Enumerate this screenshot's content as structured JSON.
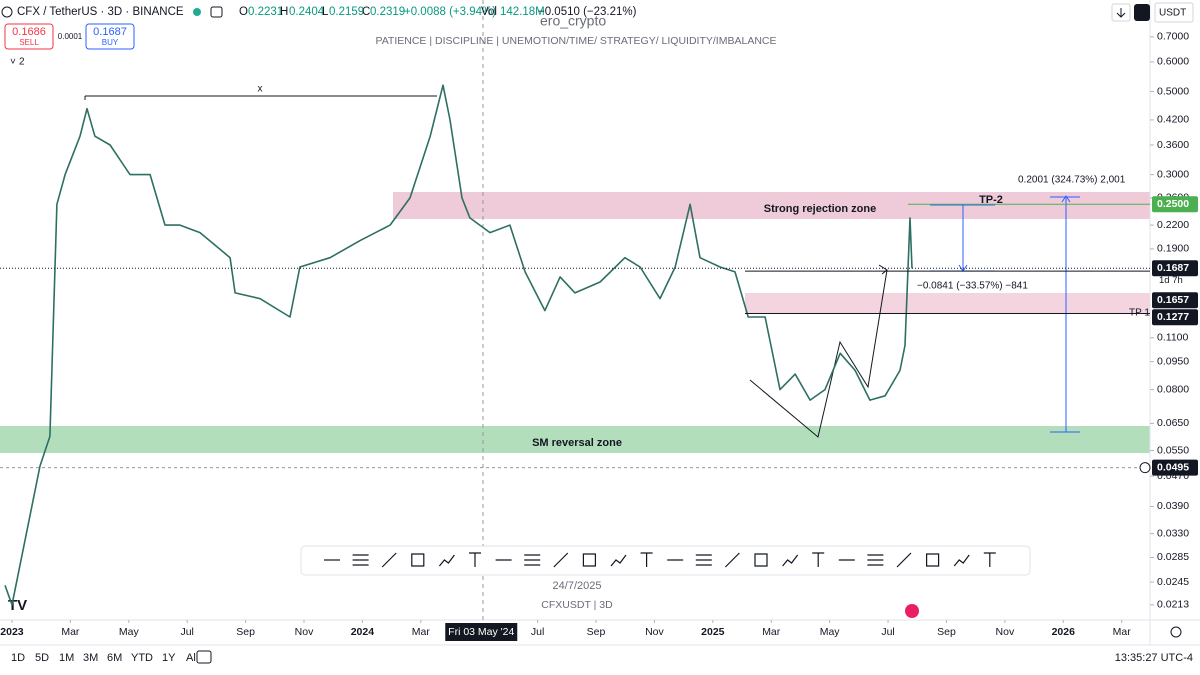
{
  "header": {
    "symbol": "CFX / TetherUS · 3D · BINANCE",
    "open_label": "O",
    "open": "0.2231",
    "high_label": "H",
    "high": "0.2404",
    "low_label": "L",
    "low": "0.2159",
    "close_label": "C",
    "close": "0.2319",
    "change": "+0.0088 (+3.94%)",
    "volume_label": "Vol",
    "volume": "142.18M",
    "period_change": "−0.0510 (−23.21%)",
    "sell_price": "0.1686",
    "sell": "SELL",
    "spread": "0.0001",
    "buy_price": "0.1687",
    "buy": "BUY",
    "indicators": "2",
    "currency": "USDT"
  },
  "author": "ero_crypto",
  "motto": "PATIENCE  |  DISCIPLINE  |  UNEMOTION/TIME/ STRATEGY/ LIQUIDITY/IMBALANCE",
  "chart_data": {
    "type": "line",
    "color": "#2e6f63",
    "log_scale": true,
    "grid": false,
    "x": [
      -0.24,
      0,
      0.96,
      1.3,
      1.54,
      1.82,
      2.33,
      2.57,
      2.84,
      3.36,
      4.04,
      4.73,
      5.24,
      5.75,
      6.44,
      7.47,
      7.64,
      8.49,
      9.52,
      9.86,
      10.89,
      11.92,
      12.95,
      13.63,
      14.32,
      14.76,
      15.0,
      15.41,
      15.68,
      16.37,
      17.05,
      17.57,
      18.25,
      18.77,
      19.28,
      20.14,
      20.99,
      21.51,
      22.19,
      22.71,
      23.22,
      23.56,
      24.25,
      24.76,
      25.21,
      25.79,
      26.3,
      26.82,
      27.33,
      27.84,
      28.36,
      28.87,
      29.38,
      29.9,
      30.41,
      30.58,
      30.75,
      30.82
    ],
    "values": [
      0.024,
      0.0213,
      0.05,
      0.06,
      0.25,
      0.3,
      0.38,
      0.45,
      0.38,
      0.36,
      0.3,
      0.3,
      0.22,
      0.22,
      0.21,
      0.18,
      0.145,
      0.14,
      0.125,
      0.17,
      0.18,
      0.2,
      0.22,
      0.26,
      0.38,
      0.52,
      0.42,
      0.26,
      0.23,
      0.21,
      0.22,
      0.165,
      0.13,
      0.16,
      0.145,
      0.155,
      0.18,
      0.17,
      0.14,
      0.17,
      0.25,
      0.18,
      0.17,
      0.165,
      0.125,
      0.125,
      0.08,
      0.088,
      0.075,
      0.08,
      0.1,
      0.09,
      0.075,
      0.077,
      0.09,
      0.105,
      0.23,
      0.1687
    ],
    "xlim": [
      -0.41,
      38.97
    ],
    "xticks": [
      {
        "value": 0,
        "label": "2023"
      },
      {
        "value": 2,
        "label": "Mar"
      },
      {
        "value": 4,
        "label": "May"
      },
      {
        "value": 6,
        "label": "Jul"
      },
      {
        "value": 8,
        "label": "Sep"
      },
      {
        "value": 10,
        "label": "Nov"
      },
      {
        "value": 12,
        "label": "2024"
      },
      {
        "value": 14,
        "label": "Mar"
      },
      {
        "value": 18,
        "label": "Jul"
      },
      {
        "value": 20,
        "label": "Sep"
      },
      {
        "value": 22,
        "label": "Nov"
      },
      {
        "value": 24,
        "label": "2025"
      },
      {
        "value": 26,
        "label": "Mar"
      },
      {
        "value": 28,
        "label": "May"
      },
      {
        "value": 30,
        "label": "Jul"
      },
      {
        "value": 32,
        "label": "Sep"
      },
      {
        "value": 34,
        "label": "Nov"
      },
      {
        "value": 36,
        "label": "2026"
      },
      {
        "value": 38,
        "label": "Mar"
      }
    ],
    "crosshair": {
      "value": 16.07,
      "label": "Fri 03 May '24"
    },
    "ylim": [
      0.0194,
      0.878
    ],
    "yticks": [
      {
        "value": 0.7,
        "label": "0.7000"
      },
      {
        "value": 0.6,
        "label": "0.6000"
      },
      {
        "value": 0.5,
        "label": "0.5000"
      },
      {
        "value": 0.42,
        "label": "0.4200"
      },
      {
        "value": 0.36,
        "label": "0.3600"
      },
      {
        "value": 0.3,
        "label": "0.3000"
      },
      {
        "value": 0.26,
        "label": "0.2600"
      },
      {
        "value": 0.22,
        "label": "0.2200"
      },
      {
        "value": 0.19,
        "label": "0.1900"
      },
      {
        "value": 0.11,
        "label": "0.1100"
      },
      {
        "value": 0.095,
        "label": "0.0950"
      },
      {
        "value": 0.08,
        "label": "0.0800"
      },
      {
        "value": 0.065,
        "label": "0.0650"
      },
      {
        "value": 0.055,
        "label": "0.0550"
      },
      {
        "value": 0.047,
        "label": "0.0470"
      },
      {
        "value": 0.039,
        "label": "0.0390"
      },
      {
        "value": 0.033,
        "label": "0.0330"
      },
      {
        "value": 0.0285,
        "label": "0.0285"
      },
      {
        "value": 0.0245,
        "label": "0.0245"
      },
      {
        "value": 0.0213,
        "label": "0.0213"
      }
    ],
    "price_badges": [
      {
        "value": 0.25,
        "label": "0.2500",
        "color": "#4caf50"
      },
      {
        "value": 0.1687,
        "label": "0.1687",
        "color": "#131722"
      },
      {
        "value": 0.1657,
        "label": "0.1657",
        "color": "#131722"
      },
      {
        "value": 0.1277,
        "label": "0.1277",
        "color": "#131722"
      },
      {
        "value": 0.0495,
        "label": "0.0495",
        "color": "#131722"
      }
    ],
    "countdown": "1d 7h",
    "annotations": {
      "high_marker": "x",
      "rejection_zone": "Strong rejection zone",
      "reversal_zone": "SM reversal zone",
      "tp2": "TP-2",
      "tp1": "TP 1",
      "measure_up": "0.2001 (324.73%) 2,001",
      "measure_down": "−0.0841 (−33.57%) −841",
      "date_note": "24/7/2025",
      "symbol_note": "CFXUSDT  |  3D"
    }
  },
  "footer": {
    "ranges": [
      "1D",
      "5D",
      "1M",
      "3M",
      "6M",
      "YTD",
      "1Y",
      "All"
    ],
    "time": "13:35:27 UTC-4"
  }
}
